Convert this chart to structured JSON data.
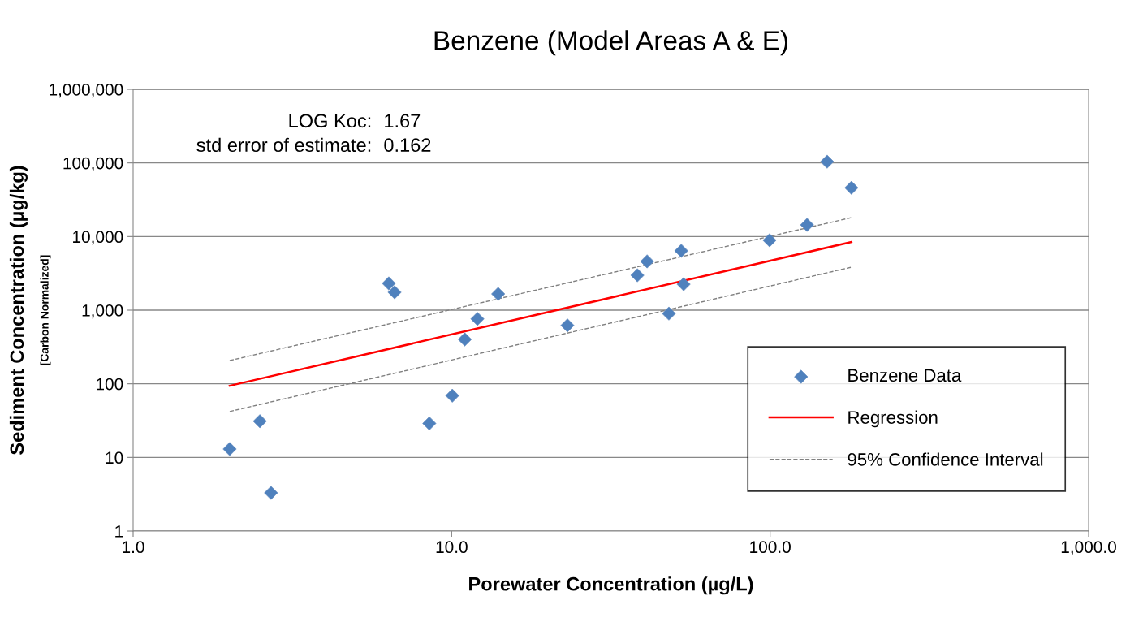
{
  "chart_data": {
    "type": "scatter",
    "title": "Benzene (Model Areas A & E)",
    "xlabel": "Porewater Concentration (µg/L)",
    "ylabel": "Sediment Concentration (µg/kg)",
    "annotations": [
      "LOG Koc:",
      "1.67",
      "std error of estimate:",
      "0.162",
      "[Carbon Normalized]"
    ],
    "log": "xy",
    "xlim": [
      1,
      1000
    ],
    "xticks": [
      {
        "value": 1,
        "label": "1.0"
      },
      {
        "value": 10,
        "label": "10.0"
      },
      {
        "value": 100,
        "label": "100.0"
      },
      {
        "value": 1000,
        "label": "1,000.0"
      }
    ],
    "ylim": [
      1,
      1000000
    ],
    "yticks": [
      {
        "value": 1,
        "label": "1"
      },
      {
        "value": 10,
        "label": "10"
      },
      {
        "value": 100,
        "label": "100"
      },
      {
        "value": 1000,
        "label": "1,000"
      },
      {
        "value": 10000,
        "label": "10,000"
      },
      {
        "value": 100000,
        "label": "100,000"
      },
      {
        "value": 1000000,
        "label": "1,000,000"
      }
    ],
    "grid": "y",
    "legend": "bottom right",
    "series": [
      {
        "name": "Benzene Data",
        "marker": "diamond",
        "color": "#4f81bd",
        "x": [
          2.01,
          2.5,
          2.71,
          6.35,
          6.62,
          8.51,
          10.05,
          11.0,
          12.05,
          14.0,
          23.1,
          38.3,
          41.1,
          48.1,
          52.6,
          53.5,
          99.6,
          130.6,
          151,
          180
        ],
        "values": [
          13,
          31,
          3.3,
          2310,
          1750,
          29,
          69,
          400,
          760,
          1660,
          620,
          2980,
          4600,
          900,
          6400,
          2250,
          8900,
          14400,
          104000,
          46000
        ]
      },
      {
        "name": "Regression",
        "type": "line",
        "marker": "none",
        "line_style": "solid",
        "color": "#ff0000",
        "x": [
          2.01,
          180
        ],
        "values": [
          94,
          8440
        ]
      },
      {
        "name": "95% Confidence Interval",
        "type": "line",
        "marker": "none",
        "line_style": "dashed",
        "color": "#808080",
        "x": [
          2.01,
          180
        ],
        "values": [
          207,
          18070
        ]
      },
      {
        "type": "line",
        "marker": "none",
        "line_style": "dashed",
        "color": "#808080",
        "x": [
          2.01,
          180
        ],
        "values": [
          42,
          3840
        ]
      }
    ]
  }
}
